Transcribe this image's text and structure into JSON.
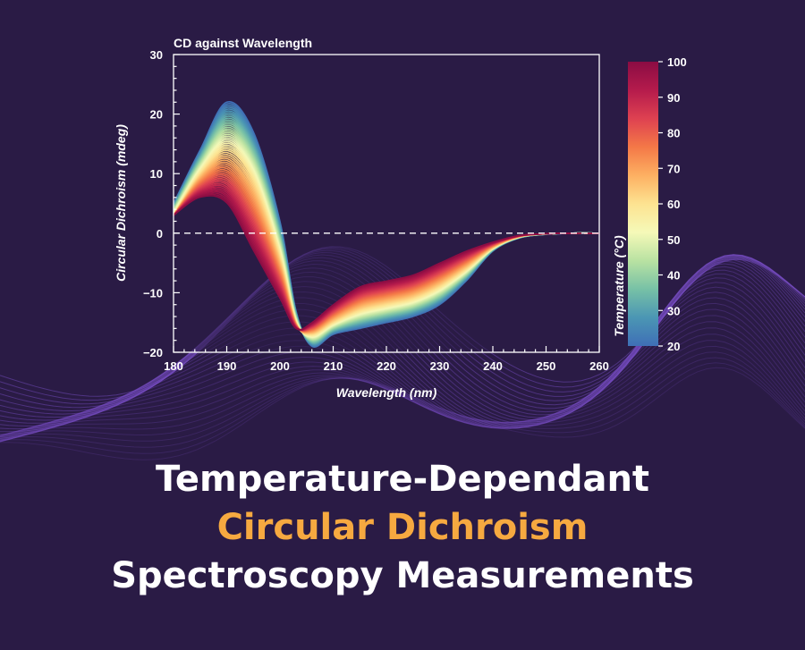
{
  "headline": {
    "line1": "Temperature-Dependant",
    "line2": "Circular Dichroism",
    "line3": "Spectroscopy Measurements",
    "accent_color": "#f6a940"
  },
  "colors": {
    "background": "#2a1b45",
    "waves": "#7a4fc7",
    "frame": "#ffffff"
  },
  "chart_data": {
    "type": "line",
    "title": "CD against Wavelength",
    "xlabel": "Wavelength (nm)",
    "ylabel": "Circular Dichroism (mdeg)",
    "xlim": [
      180,
      260
    ],
    "ylim": [
      -20,
      30
    ],
    "xticks": [
      180,
      190,
      200,
      210,
      220,
      230,
      240,
      250,
      260
    ],
    "yticks": [
      -20,
      -10,
      0,
      10,
      20,
      30
    ],
    "zero_line": "dashed",
    "grid": false,
    "series_note": "one curve per temperature from 20 to 100 °C, colored by temperature",
    "series": [
      {
        "temperature": 20,
        "x": [
          180,
          185,
          190,
          195,
          200,
          203,
          206,
          210,
          215,
          220,
          225,
          230,
          235,
          240,
          245,
          250,
          255,
          260
        ],
        "y": [
          5,
          14,
          22,
          17,
          2,
          -13,
          -19,
          -17,
          -16,
          -15,
          -14,
          -12,
          -8,
          -3,
          -0.8,
          -0.2,
          0,
          0
        ]
      },
      {
        "temperature": 60,
        "x": [
          180,
          185,
          190,
          195,
          200,
          203,
          206,
          210,
          215,
          220,
          225,
          230,
          235,
          240,
          245,
          250,
          255,
          260
        ],
        "y": [
          3,
          10,
          14,
          9,
          -4,
          -15,
          -17,
          -15,
          -13,
          -12,
          -11,
          -9,
          -6,
          -2.5,
          -0.6,
          -0.1,
          0,
          0
        ]
      },
      {
        "temperature": 100,
        "x": [
          180,
          185,
          190,
          195,
          200,
          203,
          206,
          210,
          215,
          220,
          225,
          230,
          235,
          240,
          245,
          250,
          255,
          260
        ],
        "y": [
          3,
          6,
          5,
          -3,
          -11,
          -16,
          -15,
          -12,
          -9,
          -8,
          -7,
          -5,
          -3,
          -1.5,
          -0.4,
          -0.1,
          0,
          0
        ]
      }
    ],
    "colorbar": {
      "label": "Temperature (°C)",
      "range": [
        20,
        100
      ],
      "ticks": [
        20,
        30,
        40,
        50,
        60,
        70,
        80,
        90,
        100
      ],
      "colormap": [
        "#3f6fb6",
        "#4b96b4",
        "#77c1a6",
        "#b9e2a2",
        "#f5f9b8",
        "#fde391",
        "#fdb062",
        "#f47847",
        "#de4151",
        "#b51b4c",
        "#8a0c43"
      ]
    }
  }
}
